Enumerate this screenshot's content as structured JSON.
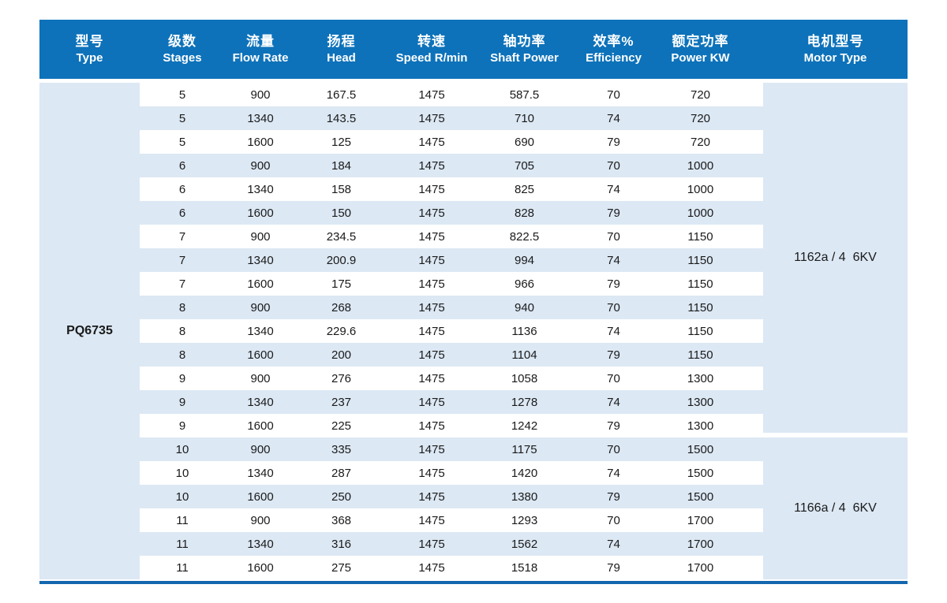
{
  "table": {
    "colors": {
      "header_bg": "#0d72ba",
      "cell_bg": "#dce8f4",
      "bottom_line": "#1467ae",
      "text": "#1a1a1a",
      "header_text": "#ffffff"
    },
    "columns": [
      {
        "zh": "型号",
        "en": "Type"
      },
      {
        "zh": "级数",
        "en": "Stages"
      },
      {
        "zh": "流量",
        "en": "Flow Rate"
      },
      {
        "zh": "扬程",
        "en": "Head"
      },
      {
        "zh": "转速",
        "en": "Speed R/min"
      },
      {
        "zh": "轴功率",
        "en": "Shaft Power"
      },
      {
        "zh": "效率%",
        "en": "Efficiency"
      },
      {
        "zh": "额定功率",
        "en": "Power KW"
      },
      {
        "zh": "电机型号",
        "en": "Motor Type"
      }
    ],
    "type_label": "PQ6735",
    "rows": [
      [
        "5",
        "900",
        "167.5",
        "1475",
        "587.5",
        "70",
        "720"
      ],
      [
        "5",
        "1340",
        "143.5",
        "1475",
        "710",
        "74",
        "720"
      ],
      [
        "5",
        "1600",
        "125",
        "1475",
        "690",
        "79",
        "720"
      ],
      [
        "6",
        "900",
        "184",
        "1475",
        "705",
        "70",
        "1000"
      ],
      [
        "6",
        "1340",
        "158",
        "1475",
        "825",
        "74",
        "1000"
      ],
      [
        "6",
        "1600",
        "150",
        "1475",
        "828",
        "79",
        "1000"
      ],
      [
        "7",
        "900",
        "234.5",
        "1475",
        "822.5",
        "70",
        "1150"
      ],
      [
        "7",
        "1340",
        "200.9",
        "1475",
        "994",
        "74",
        "1150"
      ],
      [
        "7",
        "1600",
        "175",
        "1475",
        "966",
        "79",
        "1150"
      ],
      [
        "8",
        "900",
        "268",
        "1475",
        "940",
        "70",
        "1150"
      ],
      [
        "8",
        "1340",
        "229.6",
        "1475",
        "1136",
        "74",
        "1150"
      ],
      [
        "8",
        "1600",
        "200",
        "1475",
        "1104",
        "79",
        "1150"
      ],
      [
        "9",
        "900",
        "276",
        "1475",
        "1058",
        "70",
        "1300"
      ],
      [
        "9",
        "1340",
        "237",
        "1475",
        "1278",
        "74",
        "1300"
      ],
      [
        "9",
        "1600",
        "225",
        "1475",
        "1242",
        "79",
        "1300"
      ],
      [
        "10",
        "900",
        "335",
        "1475",
        "1175",
        "70",
        "1500"
      ],
      [
        "10",
        "1340",
        "287",
        "1475",
        "1420",
        "74",
        "1500"
      ],
      [
        "10",
        "1600",
        "250",
        "1475",
        "1380",
        "79",
        "1500"
      ],
      [
        "11",
        "900",
        "368",
        "1475",
        "1293",
        "70",
        "1700"
      ],
      [
        "11",
        "1340",
        "316",
        "1475",
        "1562",
        "74",
        "1700"
      ],
      [
        "11",
        "1600",
        "275",
        "1475",
        "1518",
        "79",
        "1700"
      ]
    ],
    "motor_groups": [
      {
        "label": "1162a / 4  6KV",
        "row_span": 15
      },
      {
        "label": "1166a / 4  6KV",
        "row_span": 6
      }
    ]
  }
}
